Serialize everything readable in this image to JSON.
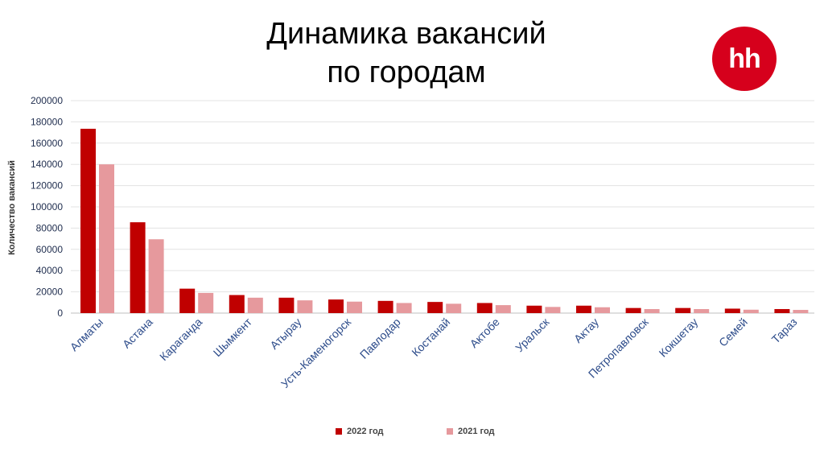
{
  "title": {
    "line1": "Динамика вакансий",
    "line2": "по городам"
  },
  "logo": {
    "text": "hh",
    "color": "#d6001c"
  },
  "chart_data": {
    "type": "bar",
    "ylabel": "Количество вакансий",
    "xlabel": "",
    "ylim": [
      0,
      200000
    ],
    "yticks": [
      0,
      20000,
      40000,
      60000,
      80000,
      100000,
      120000,
      140000,
      160000,
      180000,
      200000
    ],
    "grid": true,
    "legend_position": "bottom",
    "categories": [
      "Алматы",
      "Астана",
      "Караганда",
      "Шымкент",
      "Атырау",
      "Усть-Каменогорск",
      "Павлодар",
      "Костанай",
      "Актобе",
      "Уральск",
      "Актау",
      "Петропавловск",
      "Кокшетау",
      "Семей",
      "Тараз"
    ],
    "series": [
      {
        "name": "2022 год",
        "color": "#c00000",
        "values": [
          173500,
          85500,
          23000,
          17000,
          14500,
          12800,
          11500,
          10500,
          9500,
          7000,
          7000,
          4800,
          4800,
          4200,
          3800
        ]
      },
      {
        "name": "2021 год",
        "color": "#e6999d",
        "values": [
          140000,
          69500,
          19000,
          14500,
          12000,
          10800,
          9500,
          8800,
          7500,
          5800,
          5500,
          3800,
          3800,
          3200,
          3000
        ]
      }
    ]
  }
}
